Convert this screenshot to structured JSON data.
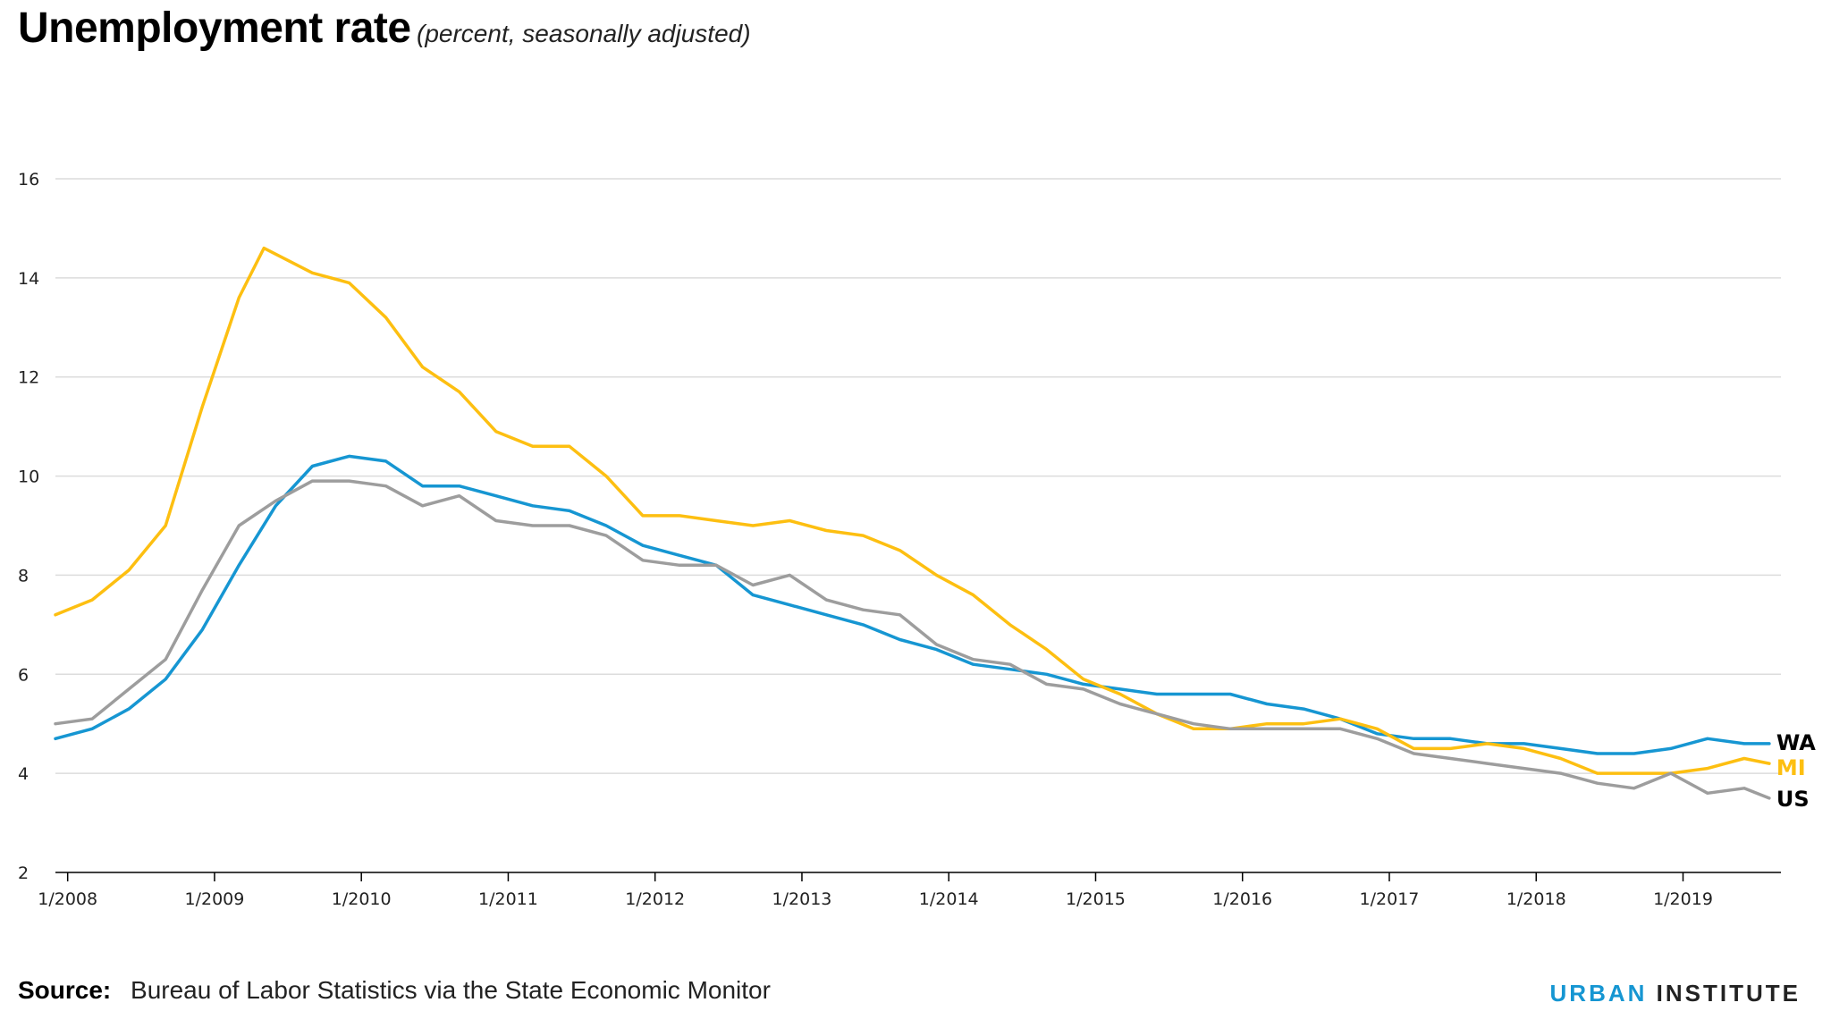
{
  "header": {
    "title": "Unemployment rate",
    "subtitle": "(percent, seasonally adjusted)"
  },
  "footer": {
    "source_label": "Source:",
    "source_text": "Bureau of Labor Statistics via the State Economic Monitor",
    "brand_first": "URBAN",
    "brand_second": "INSTITUTE"
  },
  "chart_data": {
    "type": "line",
    "title": "Unemployment rate",
    "subtitle": "(percent, seasonally adjusted)",
    "xlabel": "",
    "ylabel": "",
    "ylim": [
      2,
      16
    ],
    "yticks": [
      2,
      4,
      6,
      8,
      10,
      12,
      14,
      16
    ],
    "xticks": [
      "1/2008",
      "1/2009",
      "1/2010",
      "1/2011",
      "1/2012",
      "1/2013",
      "1/2014",
      "1/2015",
      "1/2016",
      "1/2017",
      "1/2018",
      "1/2019"
    ],
    "x_start": "1/2008",
    "x_end": "9/2019",
    "grid": true,
    "legend": "direct labels at line ends",
    "series": [
      {
        "name": "WA",
        "color": "#1696d2",
        "points": [
          [
            "2008.00",
            4.7
          ],
          [
            "2008.25",
            4.9
          ],
          [
            "2008.50",
            5.3
          ],
          [
            "2008.75",
            5.9
          ],
          [
            "2009.00",
            6.9
          ],
          [
            "2009.25",
            8.2
          ],
          [
            "2009.50",
            9.4
          ],
          [
            "2009.75",
            10.2
          ],
          [
            "2010.00",
            10.4
          ],
          [
            "2010.25",
            10.3
          ],
          [
            "2010.50",
            9.8
          ],
          [
            "2010.75",
            9.8
          ],
          [
            "2011.00",
            9.6
          ],
          [
            "2011.25",
            9.4
          ],
          [
            "2011.50",
            9.3
          ],
          [
            "2011.75",
            9.0
          ],
          [
            "2012.00",
            8.6
          ],
          [
            "2012.25",
            8.4
          ],
          [
            "2012.50",
            8.2
          ],
          [
            "2012.75",
            7.6
          ],
          [
            "2013.00",
            7.4
          ],
          [
            "2013.25",
            7.2
          ],
          [
            "2013.50",
            7.0
          ],
          [
            "2013.75",
            6.7
          ],
          [
            "2014.00",
            6.5
          ],
          [
            "2014.25",
            6.2
          ],
          [
            "2014.50",
            6.1
          ],
          [
            "2014.75",
            6.0
          ],
          [
            "2015.00",
            5.8
          ],
          [
            "2015.25",
            5.7
          ],
          [
            "2015.50",
            5.6
          ],
          [
            "2015.75",
            5.6
          ],
          [
            "2016.00",
            5.6
          ],
          [
            "2016.25",
            5.4
          ],
          [
            "2016.50",
            5.3
          ],
          [
            "2016.75",
            5.1
          ],
          [
            "2017.00",
            4.8
          ],
          [
            "2017.25",
            4.7
          ],
          [
            "2017.50",
            4.7
          ],
          [
            "2017.75",
            4.6
          ],
          [
            "2018.00",
            4.6
          ],
          [
            "2018.25",
            4.5
          ],
          [
            "2018.50",
            4.4
          ],
          [
            "2018.75",
            4.4
          ],
          [
            "2019.00",
            4.5
          ],
          [
            "2019.25",
            4.7
          ],
          [
            "2019.50",
            4.6
          ],
          [
            "2019.67",
            4.6
          ]
        ]
      },
      {
        "name": "MI",
        "color": "#fdbf11",
        "points": [
          [
            "2008.00",
            7.2
          ],
          [
            "2008.25",
            7.5
          ],
          [
            "2008.50",
            8.1
          ],
          [
            "2008.75",
            9.0
          ],
          [
            "2009.00",
            11.4
          ],
          [
            "2009.25",
            13.6
          ],
          [
            "2009.42",
            14.6
          ],
          [
            "2009.75",
            14.1
          ],
          [
            "2010.00",
            13.9
          ],
          [
            "2010.25",
            13.2
          ],
          [
            "2010.50",
            12.2
          ],
          [
            "2010.75",
            11.7
          ],
          [
            "2011.00",
            10.9
          ],
          [
            "2011.25",
            10.6
          ],
          [
            "2011.50",
            10.6
          ],
          [
            "2011.75",
            10.0
          ],
          [
            "2012.00",
            9.2
          ],
          [
            "2012.25",
            9.2
          ],
          [
            "2012.50",
            9.1
          ],
          [
            "2012.75",
            9.0
          ],
          [
            "2013.00",
            9.1
          ],
          [
            "2013.25",
            8.9
          ],
          [
            "2013.50",
            8.8
          ],
          [
            "2013.75",
            8.5
          ],
          [
            "2014.00",
            8.0
          ],
          [
            "2014.25",
            7.6
          ],
          [
            "2014.50",
            7.0
          ],
          [
            "2014.75",
            6.5
          ],
          [
            "2015.00",
            5.9
          ],
          [
            "2015.25",
            5.6
          ],
          [
            "2015.50",
            5.2
          ],
          [
            "2015.75",
            4.9
          ],
          [
            "2016.00",
            4.9
          ],
          [
            "2016.25",
            5.0
          ],
          [
            "2016.50",
            5.0
          ],
          [
            "2016.75",
            5.1
          ],
          [
            "2017.00",
            4.9
          ],
          [
            "2017.25",
            4.5
          ],
          [
            "2017.50",
            4.5
          ],
          [
            "2017.75",
            4.6
          ],
          [
            "2018.00",
            4.5
          ],
          [
            "2018.25",
            4.3
          ],
          [
            "2018.50",
            4.0
          ],
          [
            "2018.75",
            4.0
          ],
          [
            "2019.00",
            4.0
          ],
          [
            "2019.25",
            4.1
          ],
          [
            "2019.50",
            4.3
          ],
          [
            "2019.67",
            4.2
          ]
        ]
      },
      {
        "name": "US",
        "color": "#9d9d9d",
        "points": [
          [
            "2008.00",
            5.0
          ],
          [
            "2008.25",
            5.1
          ],
          [
            "2008.50",
            5.7
          ],
          [
            "2008.75",
            6.3
          ],
          [
            "2009.00",
            7.7
          ],
          [
            "2009.25",
            9.0
          ],
          [
            "2009.50",
            9.5
          ],
          [
            "2009.75",
            9.9
          ],
          [
            "2010.00",
            9.9
          ],
          [
            "2010.25",
            9.8
          ],
          [
            "2010.50",
            9.4
          ],
          [
            "2010.75",
            9.6
          ],
          [
            "2011.00",
            9.1
          ],
          [
            "2011.25",
            9.0
          ],
          [
            "2011.50",
            9.0
          ],
          [
            "2011.75",
            8.8
          ],
          [
            "2012.00",
            8.3
          ],
          [
            "2012.25",
            8.2
          ],
          [
            "2012.50",
            8.2
          ],
          [
            "2012.75",
            7.8
          ],
          [
            "2013.00",
            8.0
          ],
          [
            "2013.25",
            7.5
          ],
          [
            "2013.50",
            7.3
          ],
          [
            "2013.75",
            7.2
          ],
          [
            "2014.00",
            6.6
          ],
          [
            "2014.25",
            6.3
          ],
          [
            "2014.50",
            6.2
          ],
          [
            "2014.75",
            5.8
          ],
          [
            "2015.00",
            5.7
          ],
          [
            "2015.25",
            5.4
          ],
          [
            "2015.50",
            5.2
          ],
          [
            "2015.75",
            5.0
          ],
          [
            "2016.00",
            4.9
          ],
          [
            "2016.25",
            4.9
          ],
          [
            "2016.50",
            4.9
          ],
          [
            "2016.75",
            4.9
          ],
          [
            "2017.00",
            4.7
          ],
          [
            "2017.25",
            4.4
          ],
          [
            "2017.50",
            4.3
          ],
          [
            "2017.75",
            4.2
          ],
          [
            "2018.00",
            4.1
          ],
          [
            "2018.25",
            4.0
          ],
          [
            "2018.50",
            3.8
          ],
          [
            "2018.75",
            3.7
          ],
          [
            "2019.00",
            4.0
          ],
          [
            "2019.25",
            3.6
          ],
          [
            "2019.50",
            3.7
          ],
          [
            "2019.67",
            3.5
          ]
        ]
      }
    ]
  }
}
